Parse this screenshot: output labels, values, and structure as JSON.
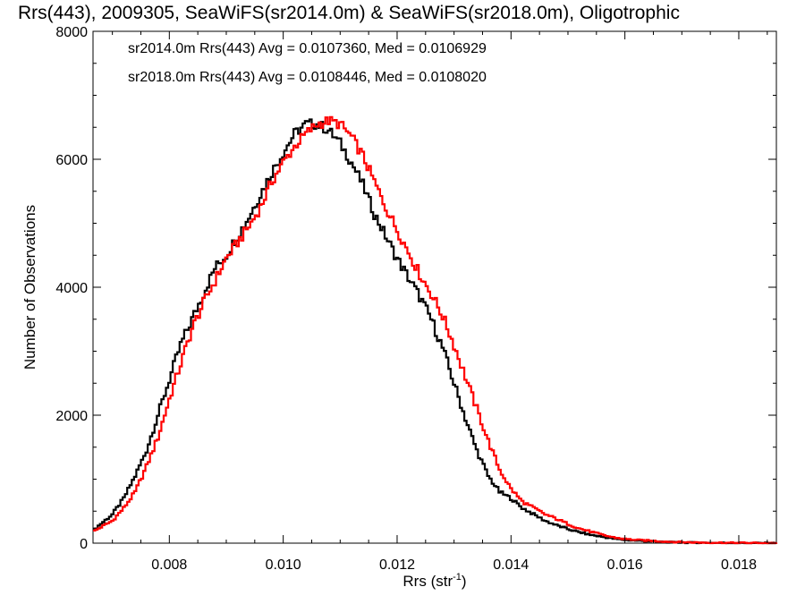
{
  "chart_data": {
    "type": "line",
    "title": "Rrs(443), 2009305, SeaWiFS(sr2014.0m) & SeaWiFS(sr2018.0m), Oligotrophic",
    "xlabel": {
      "base": "Rrs (str",
      "sup": "-1",
      "close": ")"
    },
    "ylabel": "Number of Observations",
    "xlim": [
      0.00666,
      0.01866
    ],
    "ylim": [
      0,
      8000
    ],
    "xticks": [
      0.008,
      0.01,
      0.012,
      0.014,
      0.016,
      0.018
    ],
    "xtick_labels": [
      "0.008",
      "0.010",
      "0.012",
      "0.014",
      "0.016",
      "0.018"
    ],
    "yticks": [
      0,
      2000,
      4000,
      6000,
      8000
    ],
    "ytick_labels": [
      "0",
      "2000",
      "4000",
      "6000",
      "8000"
    ],
    "legend_placement": "top-left",
    "series": [
      {
        "name": "sr2014.0m",
        "legend": "sr2014.0m Rrs(443) Avg = 0.0107360, Med = 0.0106929",
        "color": "#000000",
        "x": [
          0.00666,
          0.007,
          0.0072,
          0.0074,
          0.0076,
          0.0078,
          0.008,
          0.0082,
          0.0084,
          0.0086,
          0.0088,
          0.009,
          0.0092,
          0.0094,
          0.0096,
          0.0098,
          0.01,
          0.0102,
          0.0104,
          0.0106,
          0.0108,
          0.011,
          0.0112,
          0.0114,
          0.0116,
          0.0118,
          0.012,
          0.0122,
          0.0124,
          0.0126,
          0.0128,
          0.013,
          0.0132,
          0.0134,
          0.0136,
          0.0138,
          0.014,
          0.0142,
          0.0144,
          0.0146,
          0.0148,
          0.015,
          0.0152,
          0.0154,
          0.0156,
          0.0158,
          0.016,
          0.0162,
          0.0164,
          0.0166,
          0.0168,
          0.017,
          0.0172,
          0.0174,
          0.0176,
          0.0178,
          0.018,
          0.0182,
          0.0184,
          0.0186
        ],
        "y": [
          200,
          450,
          700,
          1050,
          1450,
          2000,
          2550,
          3100,
          3500,
          3900,
          4300,
          4500,
          4800,
          5100,
          5450,
          5800,
          6100,
          6400,
          6550,
          6550,
          6450,
          6250,
          5950,
          5600,
          5150,
          4800,
          4450,
          4150,
          3850,
          3500,
          3050,
          2500,
          1950,
          1450,
          1050,
          800,
          700,
          550,
          450,
          350,
          280,
          220,
          170,
          130,
          100,
          70,
          50,
          40,
          30,
          22,
          15,
          10,
          8,
          6,
          5,
          4,
          3,
          2,
          1,
          0
        ]
      },
      {
        "name": "sr2018.0m",
        "legend": "sr2018.0m Rrs(443) Avg = 0.0108446, Med = 0.0108020",
        "color": "#ff0000",
        "x": [
          0.00666,
          0.007,
          0.0072,
          0.0074,
          0.0076,
          0.0078,
          0.008,
          0.0082,
          0.0084,
          0.0086,
          0.0088,
          0.009,
          0.0092,
          0.0094,
          0.0096,
          0.0098,
          0.01,
          0.0102,
          0.0104,
          0.0106,
          0.0108,
          0.011,
          0.0112,
          0.0114,
          0.0116,
          0.0118,
          0.012,
          0.0122,
          0.0124,
          0.0126,
          0.0128,
          0.013,
          0.0132,
          0.0134,
          0.0136,
          0.0138,
          0.014,
          0.0142,
          0.0144,
          0.0146,
          0.0148,
          0.015,
          0.0152,
          0.0154,
          0.0156,
          0.0158,
          0.016,
          0.0162,
          0.0164,
          0.0166,
          0.0168,
          0.017,
          0.0172,
          0.0174,
          0.0176,
          0.0178,
          0.018,
          0.0182,
          0.0184,
          0.0186
        ],
        "y": [
          180,
          350,
          550,
          800,
          1200,
          1650,
          2250,
          2800,
          3350,
          3750,
          4100,
          4450,
          4700,
          4950,
          5250,
          5650,
          5950,
          6200,
          6400,
          6550,
          6600,
          6550,
          6350,
          6050,
          5650,
          5250,
          4900,
          4550,
          4200,
          3900,
          3550,
          3100,
          2600,
          2100,
          1600,
          1150,
          850,
          650,
          550,
          450,
          380,
          300,
          230,
          180,
          130,
          90,
          65,
          50,
          40,
          30,
          22,
          16,
          12,
          9,
          7,
          5,
          4,
          3,
          2,
          1
        ]
      }
    ]
  }
}
